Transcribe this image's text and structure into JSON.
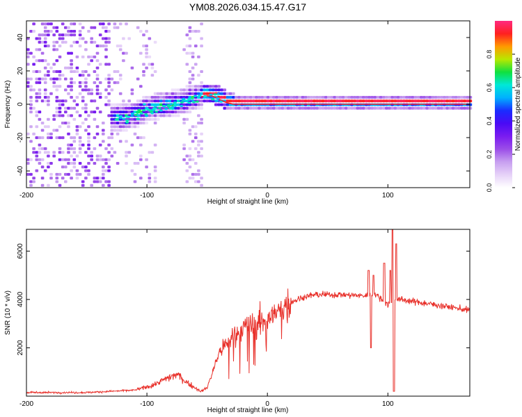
{
  "title": "YM08.2026.034.15.47.G17",
  "colors": {
    "background": "#ffffff",
    "axis": "#000000",
    "snr_line": "#e8302a",
    "doppler_line": "#ff2020",
    "colormap": [
      "#ffffff",
      "#e6d2f8",
      "#c8a0f0",
      "#9b4ee8",
      "#7a1cf0",
      "#4a0af5",
      "#1a2cff",
      "#00b0ff",
      "#00e8d8",
      "#10e040",
      "#b8e800",
      "#ff9a00",
      "#ff2020",
      "#ff2a80"
    ]
  },
  "chart_data": [
    {
      "type": "heatmap",
      "name": "doppler-spectrogram",
      "xlabel": "Height of straight line (km)",
      "ylabel": "Frequency (Hz)",
      "xlim": [
        -200,
        168
      ],
      "ylim": [
        -50,
        50
      ],
      "xticks": [
        -200,
        -100,
        0,
        100
      ],
      "xtick_labels": [
        "-200",
        "-100",
        "0",
        "100"
      ],
      "yticks": [
        -40,
        -20,
        0,
        20,
        40
      ],
      "ytick_labels": [
        "-40",
        "-20",
        "0",
        "20",
        "40"
      ],
      "colorbar": {
        "label": "Normalized spectral amplitude",
        "range": [
          0,
          1
        ],
        "ticks": [
          0,
          0.2,
          0.4,
          0.6,
          0.8
        ],
        "tick_labels": [
          "0.0",
          "0.2",
          "0.4",
          "0.6",
          "0.8"
        ]
      },
      "doppler_track": {
        "x": [
          -132,
          -118,
          -110,
          -100,
          -90,
          -80,
          -70,
          -60,
          -52,
          -46,
          -40,
          -34,
          -28,
          -20,
          0,
          40,
          100,
          168
        ],
        "y": [
          -10,
          -9,
          -7,
          -4,
          -2,
          -1,
          1,
          3,
          5,
          5,
          3,
          1,
          0,
          0,
          0,
          0,
          0,
          0
        ]
      },
      "regions": [
        {
          "x": [
            -200,
            -132
          ],
          "description": "noise"
        },
        {
          "x": [
            -132,
            -55
          ],
          "description": "weak/broad signal"
        },
        {
          "x": [
            -55,
            168
          ],
          "description": "strong narrow signal"
        }
      ]
    },
    {
      "type": "line",
      "name": "snr-profile",
      "xlabel": "Height of straight line (km)",
      "ylabel": "SNR (10 * v/v)",
      "xlim": [
        -200,
        168
      ],
      "ylim": [
        0,
        6900
      ],
      "xticks": [
        -200,
        -100,
        0,
        100
      ],
      "xtick_labels": [
        "-200",
        "-100",
        "0",
        "100"
      ],
      "yticks": [
        2000,
        4000,
        6000
      ],
      "ytick_labels": [
        "2000",
        "4000",
        "6000"
      ],
      "envelope": {
        "x": [
          -200,
          -150,
          -110,
          -95,
          -85,
          -75,
          -65,
          -55,
          -50,
          -40,
          -30,
          -20,
          -10,
          0,
          10,
          20,
          30,
          40,
          60,
          80,
          90,
          95,
          100,
          103,
          106,
          110,
          130,
          150,
          168
        ],
        "y": [
          150,
          150,
          250,
          450,
          700,
          900,
          500,
          200,
          350,
          1800,
          2400,
          2800,
          3000,
          3200,
          3500,
          3900,
          4100,
          4200,
          4200,
          4150,
          4200,
          4000,
          3800,
          3900,
          4000,
          4000,
          3850,
          3700,
          3550
        ]
      },
      "spikes": [
        {
          "x": 84,
          "y": 5200
        },
        {
          "x": 86,
          "y": 2000
        },
        {
          "x": 88,
          "y": 5000
        },
        {
          "x": 97,
          "y": 5500
        },
        {
          "x": 102,
          "y": 5200
        },
        {
          "x": 104,
          "y": 6900
        },
        {
          "x": 105,
          "y": 200
        },
        {
          "x": 107,
          "y": 6300
        }
      ]
    }
  ]
}
